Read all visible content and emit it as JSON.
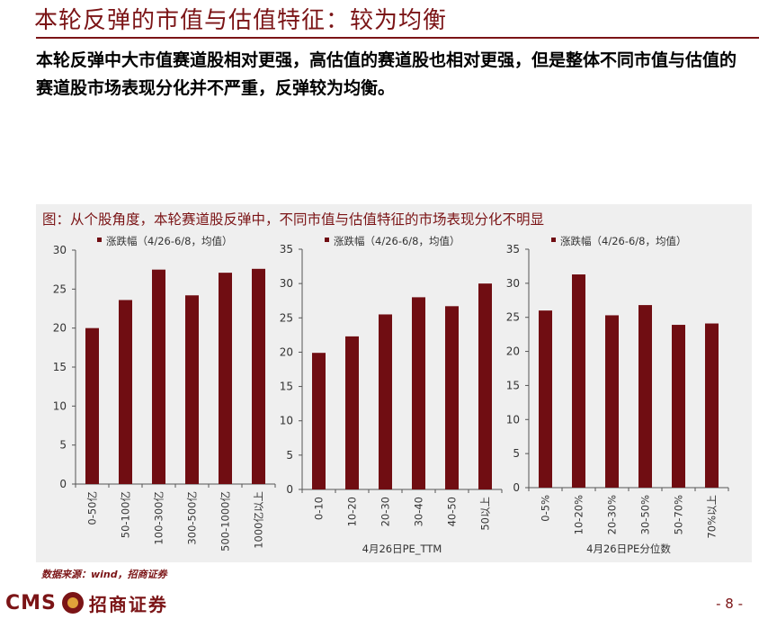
{
  "slide": {
    "title": "本轮反弹的市值与估值特征：较为均衡",
    "summary": "本轮反弹中大市值赛道股相对更强，高估值的赛道股也相对更强，但是整体不同市值与估值的赛道股市场表现分化并不严重，反弹较为均衡。",
    "figure_caption": "图：从个股角度，本轮赛道股反弹中，不同市值与估值特征的市场表现分化不明显",
    "source": "数据来源：wind，招商证券",
    "logo_text": "CMS",
    "brand_text": "招商证券",
    "page_number": "- 8 -"
  },
  "colors": {
    "accent": "#7b1416",
    "bar": "#700d12",
    "panel": "#efefef"
  },
  "chart_data": [
    {
      "type": "bar",
      "legend": "涨跌幅（4/26-6/8，均值）",
      "categories": [
        "0-50亿",
        "50-100亿",
        "100-300亿",
        "300-500亿",
        "500-1000亿",
        "1000亿以上"
      ],
      "values": [
        20.0,
        23.6,
        27.5,
        24.2,
        27.1,
        27.6
      ],
      "ylim": [
        0,
        30
      ],
      "yticks": [
        0,
        5,
        10,
        15,
        20,
        25,
        30
      ],
      "xlabel": ""
    },
    {
      "type": "bar",
      "legend": "涨跌幅（4/26-6/8，均值）",
      "categories": [
        "0-10",
        "10-20",
        "20-30",
        "30-40",
        "40-50",
        "50以上"
      ],
      "values": [
        19.9,
        22.3,
        25.5,
        28.0,
        26.7,
        30.0
      ],
      "ylim": [
        0,
        35
      ],
      "yticks": [
        0,
        5,
        10,
        15,
        20,
        25,
        30,
        35
      ],
      "xlabel": "4月26日PE_TTM"
    },
    {
      "type": "bar",
      "legend": "涨跌幅（4/26-6/8，均值）",
      "categories": [
        "0-5%",
        "10-20%",
        "20-30%",
        "30-50%",
        "50-70%",
        "70%以上"
      ],
      "values": [
        26.0,
        31.3,
        25.3,
        26.8,
        23.9,
        24.1
      ],
      "ylim": [
        0,
        35
      ],
      "yticks": [
        0,
        5,
        10,
        15,
        20,
        25,
        30,
        35
      ],
      "xlabel": "4月26日PE分位数"
    }
  ]
}
